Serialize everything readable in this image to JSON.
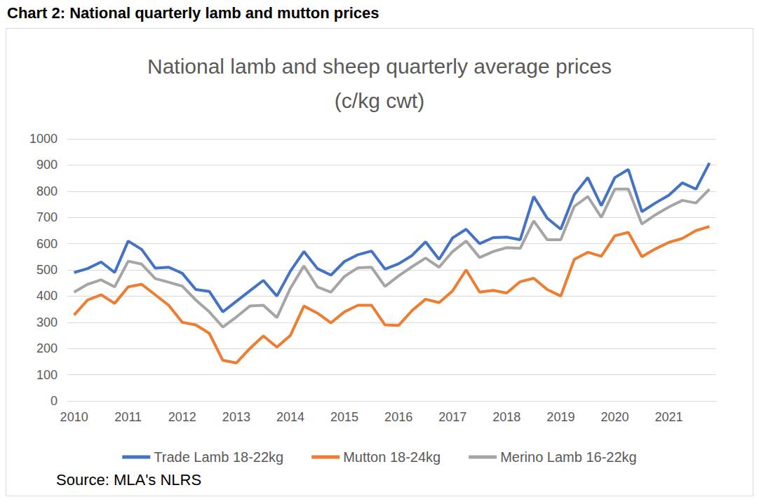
{
  "heading": "Chart 2: National quarterly lamb and mutton prices",
  "source": "Source: MLA's NLRS",
  "chart_data": {
    "type": "line",
    "title": "National lamb and sheep quarterly average prices",
    "subtitle": "(c/kg cwt)",
    "categories": [
      "2010",
      null,
      null,
      null,
      "2011",
      null,
      null,
      null,
      "2012",
      null,
      null,
      null,
      "2013",
      null,
      null,
      null,
      "2014",
      null,
      null,
      null,
      "2015",
      null,
      null,
      null,
      "2016",
      null,
      null,
      null,
      "2017",
      null,
      null,
      null,
      "2018",
      null,
      null,
      null,
      "2019",
      null,
      null,
      null,
      "2020",
      null,
      null,
      null,
      "2021",
      null,
      null,
      null
    ],
    "series": [
      {
        "name": "Trade Lamb 18-22kg",
        "color": "#4472c4",
        "values": [
          490,
          505,
          530,
          490,
          610,
          578,
          507,
          510,
          487,
          425,
          418,
          340,
          380,
          420,
          460,
          400,
          495,
          570,
          505,
          480,
          532,
          558,
          572,
          503,
          523,
          555,
          607,
          540,
          622,
          655,
          600,
          623,
          625,
          615,
          780,
          697,
          655,
          787,
          852,
          745,
          852,
          883,
          722,
          755,
          785,
          832,
          808,
          908
        ]
      },
      {
        "name": "Mutton 18-24kg",
        "color": "#ed7d31",
        "values": [
          328,
          385,
          405,
          372,
          435,
          445,
          405,
          365,
          300,
          290,
          258,
          155,
          145,
          200,
          248,
          205,
          250,
          362,
          335,
          298,
          340,
          365,
          365,
          290,
          288,
          345,
          388,
          375,
          420,
          500,
          415,
          422,
          412,
          455,
          468,
          425,
          400,
          540,
          567,
          552,
          630,
          643,
          550,
          580,
          605,
          620,
          650,
          665
        ]
      },
      {
        "name": "Merino Lamb 16-22kg",
        "color": "#a5a5a5",
        "values": [
          415,
          445,
          462,
          435,
          533,
          522,
          467,
          453,
          438,
          385,
          340,
          282,
          320,
          362,
          365,
          318,
          430,
          515,
          435,
          415,
          475,
          508,
          510,
          437,
          477,
          512,
          545,
          510,
          570,
          610,
          547,
          570,
          585,
          582,
          687,
          615,
          615,
          742,
          780,
          700,
          808,
          808,
          675,
          710,
          740,
          765,
          755,
          808
        ]
      }
    ],
    "ylim": [
      0,
      1000
    ],
    "yticks": [
      0,
      100,
      200,
      300,
      400,
      500,
      600,
      700,
      800,
      900,
      1000
    ],
    "grid": true,
    "legend": "bottom"
  }
}
